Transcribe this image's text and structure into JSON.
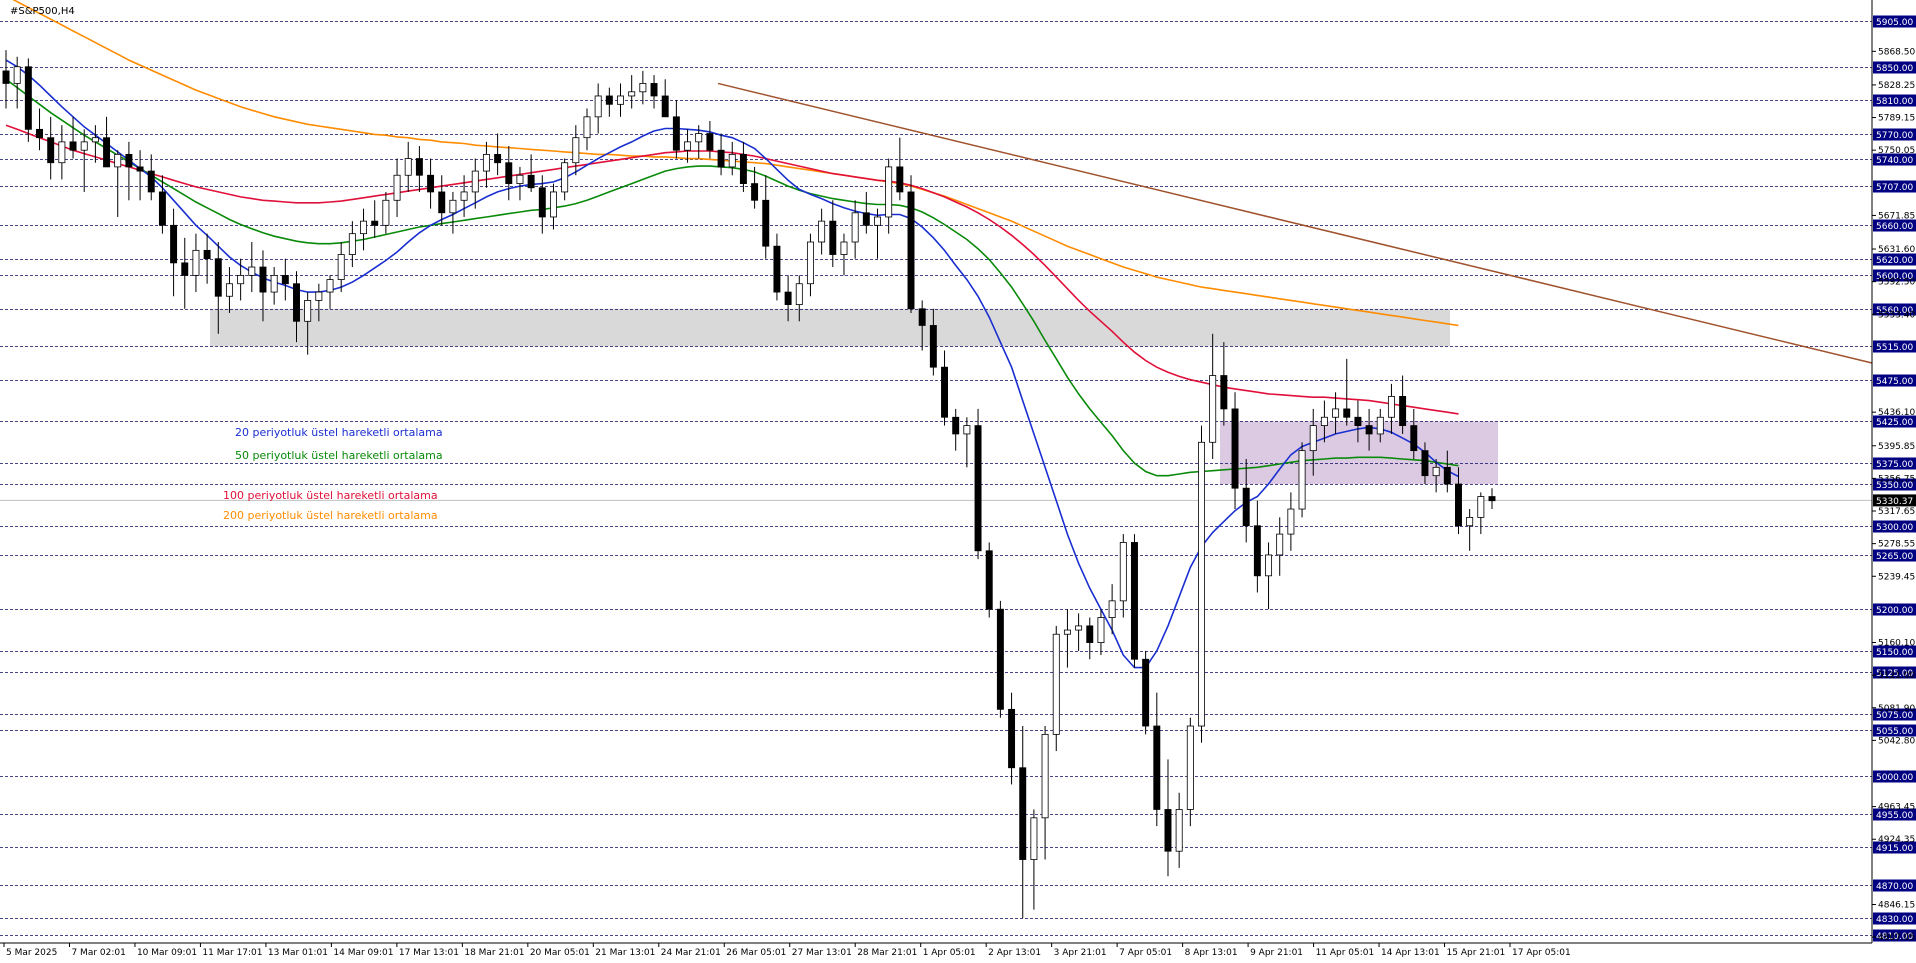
{
  "window": {
    "symbol_label": "#S&P500,H4"
  },
  "legend": [
    {
      "text": "20 periyotluk üstel hareketli ortalama",
      "color": "#1a2fd0"
    },
    {
      "text": "50 periyotluk üstel hareketli ortalama",
      "color": "#0a8a0a"
    },
    {
      "text": "100 periyotluk üstel hareketli ortalama",
      "color": "#e0103a"
    },
    {
      "text": "200 periyotluk üstel hareketli ortalama",
      "color": "#ff8c00"
    }
  ],
  "colors": {
    "ema20": "#1a2fd0",
    "ema50": "#0a8a0a",
    "ema100": "#e0103a",
    "ema200": "#ff8c00",
    "trendline": "#a0522d",
    "level_tag_bg": "#000080",
    "gray_zone": "#d9d9d9",
    "purple_zone": "#d8c4e0"
  },
  "chart_data": {
    "type": "candlestick",
    "instrument": "#S&P500",
    "timeframe": "H4",
    "ylim": [
      4800,
      5930
    ],
    "x_tick_labels": [
      "5 Mar 2025",
      "7 Mar 02:01",
      "10 Mar 09:01",
      "11 Mar 17:01",
      "13 Mar 01:01",
      "14 Mar 09:01",
      "17 Mar 13:01",
      "18 Mar 21:01",
      "20 Mar 05:01",
      "21 Mar 13:01",
      "24 Mar 21:01",
      "26 Mar 05:01",
      "27 Mar 13:01",
      "28 Mar 21:01",
      "1 Apr 05:01",
      "2 Apr 13:01",
      "3 Apr 21:01",
      "7 Apr 05:01",
      "8 Apr 13:01",
      "9 Apr 21:01",
      "11 Apr 05:01",
      "14 Apr 13:01",
      "15 Apr 21:01",
      "17 Apr 05:01"
    ],
    "y_tick_labels": [
      "5868.50",
      "5828.25",
      "5789.15",
      "5750.05",
      "5671.85",
      "5631.60",
      "5592.50",
      "5553.40",
      "5436.10",
      "5395.85",
      "5356.75",
      "5317.65",
      "5278.55",
      "5239.45",
      "5160.10",
      "5121.00",
      "5081.90",
      "5042.80",
      "4963.45",
      "4924.35",
      "4846.15",
      "4807.05"
    ],
    "level_tags": [
      "5905.00",
      "5850.00",
      "5810.00",
      "5770.00",
      "5740.00",
      "5707.00",
      "5660.00",
      "5620.00",
      "5600.00",
      "5560.00",
      "5515.00",
      "5475.00",
      "5425.00",
      "5375.00",
      "5350.00",
      "5300.00",
      "5265.00",
      "5200.00",
      "5150.00",
      "5125.00",
      "5075.00",
      "5055.00",
      "5000.00",
      "4955.00",
      "4915.00",
      "4870.00",
      "4830.00",
      "4810.00"
    ],
    "current_price": "5330.37",
    "zones": [
      {
        "name": "gray-resistance-zone",
        "low": 5515,
        "high": 5560
      },
      {
        "name": "purple-congestion-zone",
        "low": 5350,
        "high": 5425
      }
    ],
    "trendline": {
      "from_price": 5830,
      "to_price": 5495
    },
    "ohlc": [
      [
        5845,
        5870,
        5800,
        5830
      ],
      [
        5830,
        5862,
        5800,
        5850
      ],
      [
        5850,
        5860,
        5760,
        5775
      ],
      [
        5775,
        5800,
        5750,
        5765
      ],
      [
        5765,
        5790,
        5715,
        5735
      ],
      [
        5735,
        5780,
        5715,
        5760
      ],
      [
        5760,
        5790,
        5740,
        5750
      ],
      [
        5750,
        5775,
        5700,
        5760
      ],
      [
        5760,
        5780,
        5735,
        5765
      ],
      [
        5765,
        5790,
        5740,
        5730
      ],
      [
        5730,
        5750,
        5670,
        5745
      ],
      [
        5745,
        5760,
        5690,
        5730
      ],
      [
        5730,
        5750,
        5690,
        5725
      ],
      [
        5725,
        5745,
        5690,
        5700
      ],
      [
        5700,
        5720,
        5650,
        5660
      ],
      [
        5660,
        5680,
        5575,
        5615
      ],
      [
        5615,
        5645,
        5560,
        5600
      ],
      [
        5600,
        5650,
        5580,
        5630
      ],
      [
        5630,
        5650,
        5590,
        5620
      ],
      [
        5620,
        5640,
        5530,
        5575
      ],
      [
        5575,
        5610,
        5555,
        5590
      ],
      [
        5590,
        5620,
        5570,
        5600
      ],
      [
        5600,
        5640,
        5580,
        5610
      ],
      [
        5610,
        5630,
        5545,
        5580
      ],
      [
        5580,
        5610,
        5565,
        5600
      ],
      [
        5600,
        5620,
        5570,
        5590
      ],
      [
        5590,
        5605,
        5520,
        5545
      ],
      [
        5545,
        5580,
        5505,
        5570
      ],
      [
        5570,
        5590,
        5545,
        5580
      ],
      [
        5580,
        5600,
        5560,
        5595
      ],
      [
        5595,
        5640,
        5580,
        5625
      ],
      [
        5625,
        5665,
        5610,
        5650
      ],
      [
        5650,
        5680,
        5630,
        5665
      ],
      [
        5665,
        5690,
        5645,
        5660
      ],
      [
        5660,
        5700,
        5650,
        5690
      ],
      [
        5690,
        5740,
        5670,
        5720
      ],
      [
        5720,
        5760,
        5700,
        5740
      ],
      [
        5740,
        5755,
        5700,
        5720
      ],
      [
        5720,
        5740,
        5680,
        5700
      ],
      [
        5700,
        5720,
        5660,
        5675
      ],
      [
        5675,
        5700,
        5650,
        5690
      ],
      [
        5690,
        5720,
        5670,
        5700
      ],
      [
        5700,
        5740,
        5680,
        5725
      ],
      [
        5725,
        5760,
        5705,
        5745
      ],
      [
        5745,
        5770,
        5720,
        5735
      ],
      [
        5735,
        5755,
        5690,
        5710
      ],
      [
        5710,
        5730,
        5690,
        5720
      ],
      [
        5720,
        5745,
        5700,
        5705
      ],
      [
        5705,
        5720,
        5650,
        5670
      ],
      [
        5670,
        5710,
        5655,
        5700
      ],
      [
        5700,
        5740,
        5690,
        5735
      ],
      [
        5735,
        5780,
        5720,
        5765
      ],
      [
        5765,
        5800,
        5750,
        5790
      ],
      [
        5790,
        5830,
        5770,
        5815
      ],
      [
        5815,
        5825,
        5790,
        5805
      ],
      [
        5805,
        5830,
        5790,
        5815
      ],
      [
        5815,
        5840,
        5800,
        5820
      ],
      [
        5820,
        5845,
        5805,
        5830
      ],
      [
        5830,
        5840,
        5800,
        5815
      ],
      [
        5815,
        5835,
        5790,
        5790
      ],
      [
        5790,
        5810,
        5740,
        5750
      ],
      [
        5750,
        5775,
        5735,
        5760
      ],
      [
        5760,
        5780,
        5740,
        5770
      ],
      [
        5770,
        5785,
        5740,
        5750
      ],
      [
        5750,
        5770,
        5720,
        5730
      ],
      [
        5730,
        5760,
        5720,
        5745
      ],
      [
        5745,
        5760,
        5700,
        5710
      ],
      [
        5710,
        5730,
        5680,
        5690
      ],
      [
        5690,
        5720,
        5620,
        5635
      ],
      [
        5635,
        5650,
        5570,
        5580
      ],
      [
        5580,
        5600,
        5545,
        5565
      ],
      [
        5565,
        5600,
        5545,
        5590
      ],
      [
        5590,
        5650,
        5575,
        5640
      ],
      [
        5640,
        5680,
        5625,
        5665
      ],
      [
        5665,
        5690,
        5610,
        5625
      ],
      [
        5625,
        5650,
        5600,
        5640
      ],
      [
        5640,
        5690,
        5620,
        5675
      ],
      [
        5675,
        5700,
        5650,
        5660
      ],
      [
        5660,
        5680,
        5620,
        5670
      ],
      [
        5670,
        5740,
        5650,
        5730
      ],
      [
        5730,
        5765,
        5690,
        5700
      ],
      [
        5700,
        5720,
        5555,
        5560
      ],
      [
        5560,
        5570,
        5510,
        5540
      ],
      [
        5540,
        5560,
        5480,
        5490
      ],
      [
        5490,
        5510,
        5420,
        5430
      ],
      [
        5430,
        5440,
        5390,
        5410
      ],
      [
        5410,
        5430,
        5370,
        5420
      ],
      [
        5420,
        5440,
        5260,
        5270
      ],
      [
        5270,
        5280,
        5190,
        5200
      ],
      [
        5200,
        5210,
        5070,
        5080
      ],
      [
        5080,
        5100,
        4990,
        5010
      ],
      [
        5010,
        5060,
        4830,
        4900
      ],
      [
        4900,
        4960,
        4840,
        4950
      ],
      [
        4950,
        5060,
        4900,
        5050
      ],
      [
        5050,
        5180,
        5030,
        5170
      ],
      [
        5170,
        5200,
        5130,
        5175
      ],
      [
        5175,
        5195,
        5150,
        5180
      ],
      [
        5180,
        5190,
        5140,
        5160
      ],
      [
        5160,
        5200,
        5145,
        5190
      ],
      [
        5190,
        5230,
        5170,
        5210
      ],
      [
        5210,
        5290,
        5190,
        5280
      ],
      [
        5280,
        5290,
        5130,
        5140
      ],
      [
        5140,
        5150,
        5050,
        5060
      ],
      [
        5060,
        5100,
        4940,
        4960
      ],
      [
        4960,
        5020,
        4880,
        4910
      ],
      [
        4910,
        4980,
        4890,
        4960
      ],
      [
        4960,
        5070,
        4940,
        5060
      ],
      [
        5060,
        5420,
        5040,
        5400
      ],
      [
        5400,
        5530,
        5380,
        5480
      ],
      [
        5480,
        5520,
        5420,
        5440
      ],
      [
        5440,
        5460,
        5320,
        5345
      ],
      [
        5345,
        5380,
        5280,
        5300
      ],
      [
        5300,
        5330,
        5220,
        5240
      ],
      [
        5240,
        5280,
        5200,
        5265
      ],
      [
        5265,
        5310,
        5240,
        5290
      ],
      [
        5290,
        5340,
        5270,
        5320
      ],
      [
        5320,
        5400,
        5310,
        5390
      ],
      [
        5390,
        5440,
        5360,
        5420
      ],
      [
        5420,
        5450,
        5400,
        5430
      ],
      [
        5430,
        5460,
        5410,
        5440
      ],
      [
        5440,
        5500,
        5420,
        5430
      ],
      [
        5430,
        5450,
        5400,
        5420
      ],
      [
        5420,
        5440,
        5390,
        5410
      ],
      [
        5410,
        5440,
        5400,
        5430
      ],
      [
        5430,
        5470,
        5410,
        5455
      ],
      [
        5455,
        5480,
        5410,
        5420
      ],
      [
        5420,
        5440,
        5380,
        5390
      ],
      [
        5390,
        5400,
        5350,
        5360
      ],
      [
        5360,
        5380,
        5340,
        5370
      ],
      [
        5370,
        5390,
        5340,
        5350
      ],
      [
        5350,
        5370,
        5290,
        5300
      ],
      [
        5300,
        5320,
        5270,
        5310
      ],
      [
        5310,
        5340,
        5290,
        5335
      ],
      [
        5335,
        5345,
        5320,
        5330
      ]
    ],
    "ema20": [
      5858,
      5850,
      5840,
      5828,
      5815,
      5802,
      5790,
      5778,
      5768,
      5758,
      5748,
      5738,
      5728,
      5718,
      5705,
      5690,
      5675,
      5660,
      5648,
      5635,
      5622,
      5612,
      5604,
      5597,
      5592,
      5588,
      5583,
      5580,
      5580,
      5582,
      5586,
      5592,
      5600,
      5609,
      5618,
      5628,
      5640,
      5651,
      5660,
      5667,
      5673,
      5680,
      5687,
      5694,
      5700,
      5704,
      5707,
      5709,
      5710,
      5712,
      5717,
      5724,
      5732,
      5740,
      5747,
      5754,
      5760,
      5767,
      5773,
      5776,
      5776,
      5775,
      5774,
      5772,
      5768,
      5765,
      5759,
      5752,
      5740,
      5727,
      5714,
      5703,
      5697,
      5692,
      5686,
      5681,
      5677,
      5674,
      5672,
      5673,
      5673,
      5668,
      5658,
      5645,
      5630,
      5612,
      5595,
      5575,
      5550,
      5520,
      5490,
      5450,
      5410,
      5370,
      5330,
      5290,
      5255,
      5225,
      5200,
      5175,
      5145,
      5130,
      5130,
      5150,
      5180,
      5215,
      5250,
      5275,
      5292,
      5305,
      5318,
      5328,
      5335,
      5350,
      5368,
      5385,
      5395,
      5400,
      5405,
      5410,
      5413,
      5416,
      5418,
      5416,
      5412,
      5405,
      5398,
      5388,
      5376,
      5366,
      5359
    ],
    "ema50": [
      5835,
      5825,
      5815,
      5805,
      5795,
      5786,
      5777,
      5768,
      5760,
      5752,
      5744,
      5736,
      5728,
      5720,
      5712,
      5704,
      5696,
      5688,
      5681,
      5674,
      5667,
      5661,
      5656,
      5651,
      5647,
      5644,
      5641,
      5639,
      5638,
      5638,
      5639,
      5641,
      5643,
      5646,
      5649,
      5652,
      5655,
      5658,
      5660,
      5662,
      5664,
      5666,
      5668,
      5670,
      5672,
      5674,
      5676,
      5678,
      5679,
      5681,
      5683,
      5686,
      5690,
      5695,
      5700,
      5705,
      5710,
      5715,
      5720,
      5725,
      5728,
      5730,
      5731,
      5731,
      5730,
      5729,
      5727,
      5724,
      5719,
      5713,
      5707,
      5702,
      5698,
      5695,
      5692,
      5690,
      5688,
      5686,
      5685,
      5685,
      5684,
      5681,
      5676,
      5669,
      5661,
      5652,
      5643,
      5632,
      5619,
      5603,
      5586,
      5566,
      5545,
      5522,
      5500,
      5478,
      5458,
      5440,
      5424,
      5408,
      5390,
      5375,
      5365,
      5360,
      5360,
      5362,
      5364,
      5365,
      5366,
      5367,
      5368,
      5369,
      5370,
      5372,
      5374,
      5376,
      5378,
      5379,
      5380,
      5381,
      5381,
      5382,
      5382,
      5382,
      5381,
      5380,
      5379,
      5378,
      5376,
      5374,
      5372
    ],
    "ema100": [
      5780,
      5775,
      5770,
      5765,
      5760,
      5755,
      5750,
      5746,
      5742,
      5738,
      5734,
      5730,
      5726,
      5722,
      5718,
      5714,
      5710,
      5706,
      5703,
      5700,
      5697,
      5694,
      5692,
      5690,
      5689,
      5688,
      5687,
      5687,
      5687,
      5688,
      5689,
      5691,
      5693,
      5695,
      5697,
      5699,
      5701,
      5703,
      5705,
      5707,
      5709,
      5711,
      5713,
      5715,
      5717,
      5719,
      5721,
      5723,
      5725,
      5727,
      5729,
      5731,
      5733,
      5735,
      5737,
      5739,
      5741,
      5743,
      5745,
      5747,
      5748,
      5749,
      5749,
      5749,
      5748,
      5747,
      5745,
      5743,
      5740,
      5737,
      5734,
      5731,
      5728,
      5725,
      5722,
      5720,
      5718,
      5716,
      5714,
      5713,
      5711,
      5708,
      5704,
      5699,
      5694,
      5688,
      5682,
      5675,
      5667,
      5658,
      5648,
      5637,
      5625,
      5612,
      5598,
      5584,
      5570,
      5557,
      5545,
      5533,
      5520,
      5508,
      5498,
      5490,
      5484,
      5479,
      5475,
      5472,
      5469,
      5466,
      5464,
      5462,
      5460,
      5458,
      5457,
      5456,
      5455,
      5454,
      5454,
      5453,
      5452,
      5451,
      5450,
      5448,
      5446,
      5444,
      5442,
      5440,
      5438,
      5436,
      5434
    ],
    "ema200": [
      5935,
      5928,
      5921,
      5914,
      5907,
      5900,
      5893,
      5886,
      5879,
      5872,
      5865,
      5858,
      5852,
      5846,
      5840,
      5834,
      5828,
      5822,
      5817,
      5812,
      5807,
      5802,
      5798,
      5794,
      5790,
      5787,
      5784,
      5781,
      5779,
      5777,
      5775,
      5773,
      5771,
      5769,
      5768,
      5766,
      5765,
      5763,
      5762,
      5760,
      5759,
      5758,
      5756,
      5755,
      5754,
      5753,
      5752,
      5751,
      5750,
      5749,
      5748,
      5747,
      5746,
      5745,
      5745,
      5744,
      5743,
      5743,
      5742,
      5742,
      5741,
      5740,
      5740,
      5739,
      5738,
      5737,
      5736,
      5735,
      5734,
      5732,
      5730,
      5728,
      5726,
      5724,
      5722,
      5720,
      5718,
      5716,
      5714,
      5712,
      5710,
      5707,
      5703,
      5699,
      5695,
      5690,
      5685,
      5680,
      5675,
      5670,
      5665,
      5659,
      5653,
      5647,
      5641,
      5635,
      5630,
      5625,
      5620,
      5615,
      5610,
      5606,
      5602,
      5598,
      5595,
      5592,
      5589,
      5586,
      5584,
      5582,
      5580,
      5578,
      5576,
      5574,
      5572,
      5570,
      5568,
      5566,
      5564,
      5562,
      5560,
      5558,
      5556,
      5554,
      5552,
      5550,
      5548,
      5546,
      5544,
      5542,
      5540
    ]
  }
}
